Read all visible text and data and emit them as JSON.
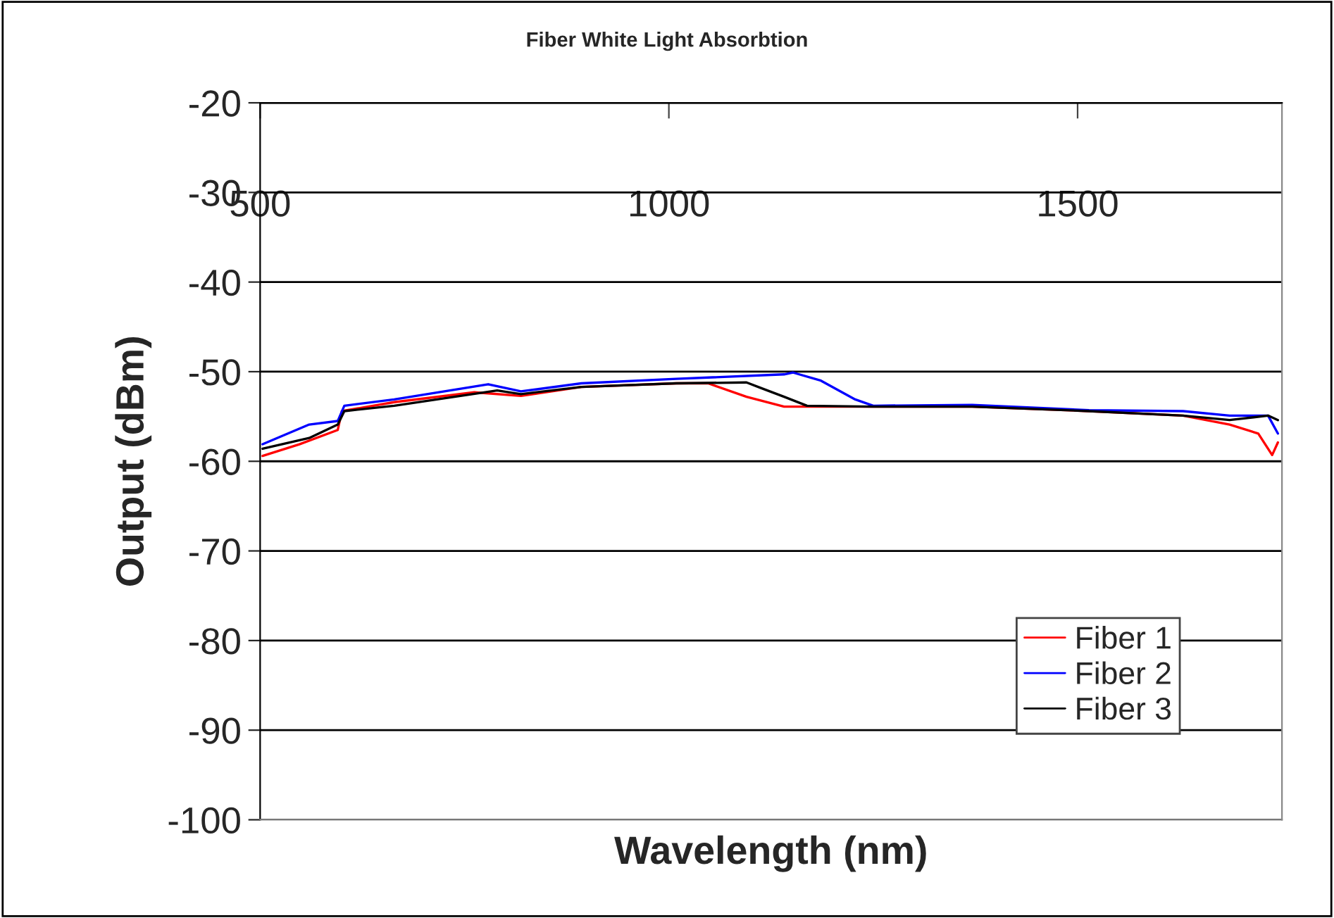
{
  "chart_data": {
    "type": "line",
    "title": "Fiber White Light Absorbtion",
    "xlabel": "Wavelength (nm)",
    "ylabel": "Output (dBm)",
    "xlim": [
      500,
      1750
    ],
    "xticks": [
      500,
      1000,
      1500
    ],
    "ylim": [
      -100,
      -20
    ],
    "yticks": [
      -100,
      -90,
      -80,
      -70,
      -60,
      -50,
      -40,
      -30,
      -20
    ],
    "grid": "y",
    "legend": "bottom right",
    "marker": "none",
    "line_style": "solid",
    "series": [
      {
        "name": "Fiber 1",
        "color": "#ff0000",
        "x": [
          503,
          548,
          595,
          600,
          664,
          762,
          819,
          893,
          1009,
          1048,
          1095,
          1141,
          1147,
          1371,
          1514,
          1629,
          1686,
          1721,
          1738,
          1745
        ],
        "values": [
          -59.4,
          -58.1,
          -56.5,
          -54.4,
          -53.4,
          -52.3,
          -52.7,
          -51.7,
          -51.3,
          -51.3,
          -52.8,
          -53.9,
          -53.9,
          -53.9,
          -54.4,
          -54.9,
          -55.9,
          -56.9,
          -59.3,
          -57.9
        ]
      },
      {
        "name": "Fiber 2",
        "color": "#0000ff",
        "x": [
          503,
          560,
          595,
          603,
          664,
          779,
          819,
          893,
          1009,
          1141,
          1152,
          1186,
          1228,
          1250,
          1371,
          1514,
          1629,
          1686,
          1733,
          1745
        ],
        "values": [
          -58.1,
          -55.9,
          -55.5,
          -53.8,
          -53.1,
          -51.4,
          -52.2,
          -51.3,
          -50.8,
          -50.3,
          -50.1,
          -51.0,
          -53.1,
          -53.8,
          -53.7,
          -54.3,
          -54.4,
          -54.9,
          -54.9,
          -56.9
        ]
      },
      {
        "name": "Fiber 3",
        "color": "#000000",
        "x": [
          503,
          560,
          595,
          603,
          664,
          790,
          819,
          893,
          1009,
          1095,
          1112,
          1141,
          1169,
          1250,
          1371,
          1514,
          1629,
          1686,
          1733,
          1745
        ],
        "values": [
          -58.6,
          -57.4,
          -55.9,
          -54.4,
          -53.8,
          -52.1,
          -52.5,
          -51.7,
          -51.3,
          -51.2,
          -51.8,
          -52.8,
          -53.8,
          -53.9,
          -53.9,
          -54.4,
          -54.9,
          -55.4,
          -54.9,
          -55.4
        ]
      }
    ]
  }
}
